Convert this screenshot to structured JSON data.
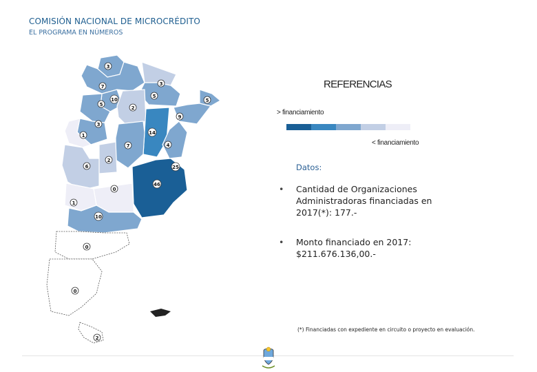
{
  "header": {
    "title": "COMISIÓN NACIONAL DE MICROCRÉDITO",
    "subtitle": "EL PROGRAMA EN NÚMEROS"
  },
  "legend": {
    "title": "REFERENCIAS",
    "more_label": "> financiamiento",
    "less_label": "< financiamiento",
    "scale_colors": [
      "#1a5f96",
      "#3987c0",
      "#7fa7cf",
      "#c2cfe5",
      "#eeeef7"
    ]
  },
  "map": {
    "province_values": [
      "3",
      "7",
      "3",
      "5",
      "5",
      "10",
      "5",
      "2",
      "9",
      "3",
      "1",
      "14",
      "7",
      "4",
      "2",
      "6",
      "25",
      "46",
      "0",
      "1",
      "10",
      "0",
      "0",
      "2"
    ]
  },
  "datos": {
    "label": "Datos:",
    "items": [
      "Cantidad de Organizaciones Administradoras financiadas en 2017(*): 177.-",
      "Monto financiado en 2017: $211.676.136,00.-"
    ]
  },
  "footnote": "(*) Financiadas con expediente en circuito o proyecto en evaluación.",
  "colors": {
    "title": "#1d5d8f",
    "text": "#222222"
  }
}
